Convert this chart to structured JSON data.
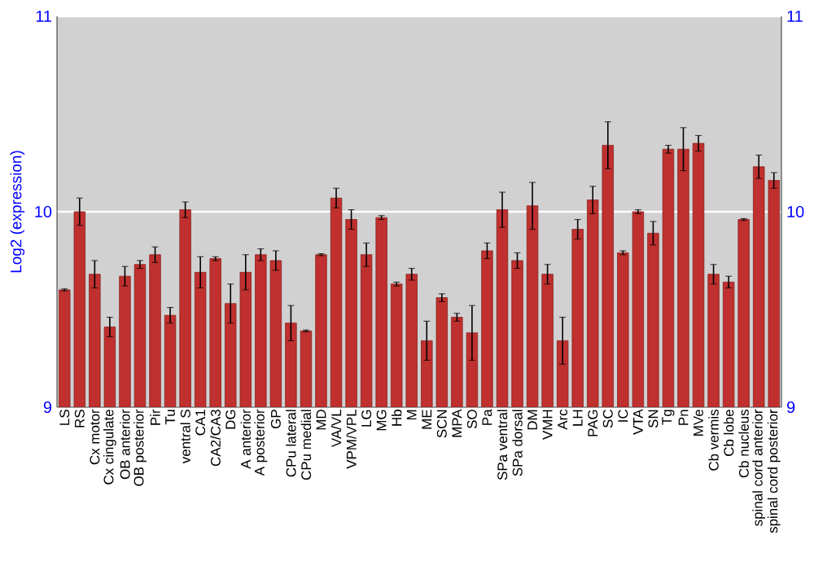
{
  "chart_data": {
    "type": "bar",
    "ylabel": "Log2 (expression)",
    "categories": [
      "LS",
      "RS",
      "Cx motor",
      "Cx cingulate",
      "OB anterior",
      "OB posterior",
      "Pir",
      "Tu",
      "ventral S",
      "CA1",
      "CA2/CA3",
      "DG",
      "A anterior",
      "A posterior",
      "GP",
      "CPu lateral",
      "CPu medial",
      "MD",
      "VA/VL",
      "VPM/VPL",
      "LG",
      "MG",
      "Hb",
      "M",
      "ME",
      "SCN",
      "MPA",
      "SO",
      "Pa",
      "SPa ventral",
      "SPa dorsal",
      "DM",
      "VMH",
      "Arc",
      "LH",
      "PAG",
      "SC",
      "IC",
      "VTA",
      "SN",
      "Tg",
      "Pn",
      "MVe",
      "Cb vermis",
      "Cb lobe",
      "Cb nucleus",
      "spinal cord anterior",
      "spinal cord posterior"
    ],
    "values": [
      9.6,
      10.0,
      9.68,
      9.41,
      9.67,
      9.73,
      9.78,
      9.47,
      10.01,
      9.69,
      9.76,
      9.53,
      9.69,
      9.78,
      9.75,
      9.43,
      9.39,
      9.78,
      10.07,
      9.96,
      9.78,
      9.97,
      9.63,
      9.68,
      9.34,
      9.56,
      9.46,
      9.38,
      9.8,
      10.01,
      9.75,
      10.03,
      9.68,
      9.34,
      9.91,
      10.06,
      10.34,
      9.79,
      10.0,
      9.89,
      10.32,
      10.32,
      10.35,
      9.68,
      9.64,
      9.96,
      10.23,
      10.16
    ],
    "errors": [
      0.005,
      0.07,
      0.07,
      0.05,
      0.05,
      0.02,
      0.04,
      0.04,
      0.04,
      0.08,
      0.01,
      0.1,
      0.09,
      0.03,
      0.05,
      0.09,
      0.005,
      0.005,
      0.05,
      0.05,
      0.06,
      0.01,
      0.01,
      0.03,
      0.1,
      0.02,
      0.02,
      0.14,
      0.04,
      0.09,
      0.04,
      0.12,
      0.05,
      0.12,
      0.05,
      0.07,
      0.12,
      0.01,
      0.01,
      0.06,
      0.02,
      0.11,
      0.04,
      0.05,
      0.03,
      0.005,
      0.06,
      0.04
    ],
    "color": "#c0302e",
    "ylim": [
      9,
      11
    ],
    "yticks": [
      9,
      10,
      11
    ],
    "y2lim": [
      9,
      11
    ],
    "y2ticks": [
      9,
      10,
      11
    ],
    "grid": "y"
  }
}
